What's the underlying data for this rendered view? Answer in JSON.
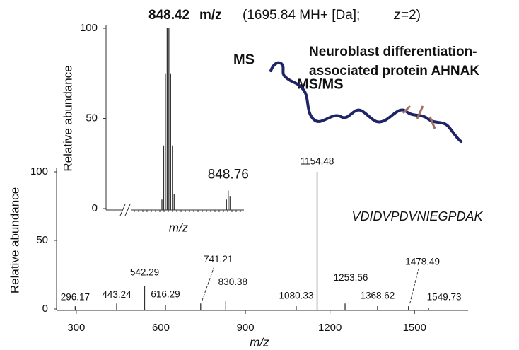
{
  "header": {
    "precursor_mz": "848.42",
    "precursor_unit": "m/z",
    "precursor_detail": "(1695.84  MH+  [Da];",
    "charge_symbol": "z",
    "charge_value": "=2)"
  },
  "protein": {
    "line1": "Neuroblast differentiation-",
    "line2": "associated protein AHNAK"
  },
  "chart_data": [
    {
      "type": "stick",
      "label": "MS/MS",
      "sequence": "VDIDVPDVNIEGPDAK",
      "x_label": "m/z",
      "y_label": "Relative abundance",
      "x": [
        296.17,
        443.24,
        542.29,
        616.29,
        741.21,
        830.38,
        1080.33,
        1154.48,
        1253.56,
        1368.62,
        1478.49,
        1549.73
      ],
      "values": [
        2,
        4,
        17,
        3,
        4,
        6,
        2,
        100,
        4,
        2,
        2,
        1
      ],
      "color": "#333333",
      "xlim": [
        230,
        1690
      ],
      "xticks": [
        300,
        600,
        900,
        1200,
        1500
      ],
      "ylim": [
        0,
        100
      ],
      "yticks": [
        0,
        50,
        100
      ],
      "point_labels": true
    },
    {
      "type": "stick",
      "label": "MS",
      "x_label": "m/z",
      "y_label": "Relative abundance",
      "x": [
        848.38,
        848.39,
        848.4,
        848.41,
        848.42,
        848.43,
        848.44,
        848.45,
        848.75,
        848.76,
        848.77
      ],
      "values": [
        5,
        35,
        75,
        100,
        100,
        75,
        35,
        8,
        5,
        10,
        7
      ],
      "color": "#333333",
      "xlim": [
        848.06,
        848.85
      ],
      "ylim": [
        0,
        100
      ],
      "yticks": [
        0,
        50,
        100
      ],
      "labelled_point": 9
    }
  ]
}
